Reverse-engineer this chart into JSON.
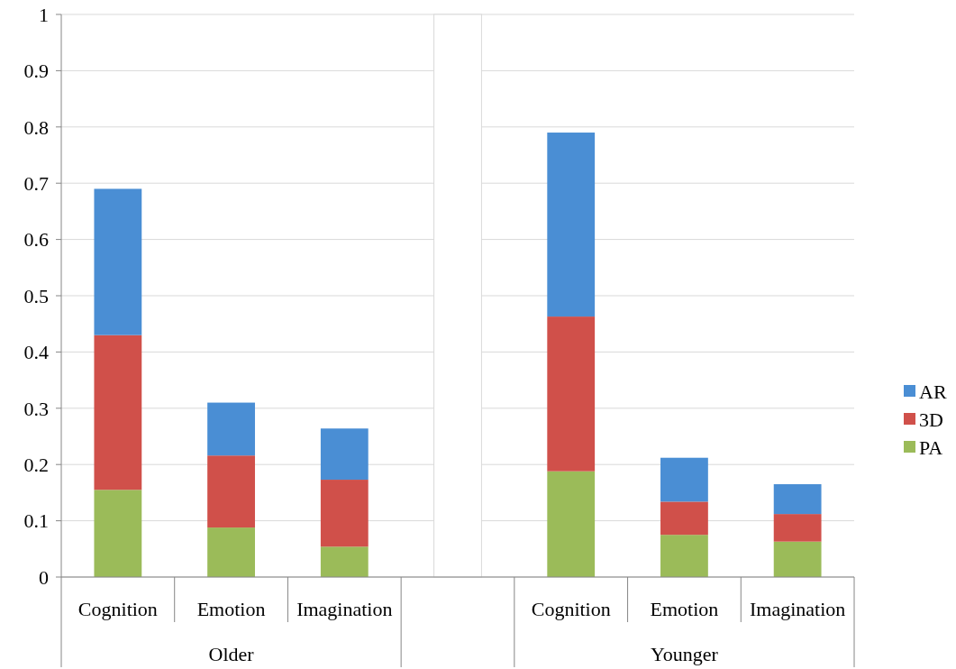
{
  "chart_data": {
    "type": "bar",
    "stacked": true,
    "categories": [
      "Cognition",
      "Emotion",
      "Imagination",
      null,
      "Cognition",
      "Emotion",
      "Imagination"
    ],
    "series": [
      {
        "name": "PA",
        "color": "#9bbb59",
        "values": [
          0.155,
          0.088,
          0.054,
          null,
          0.188,
          0.075,
          0.063
        ]
      },
      {
        "name": "3D",
        "color": "#d0504a",
        "values": [
          0.275,
          0.128,
          0.119,
          null,
          0.275,
          0.059,
          0.049
        ]
      },
      {
        "name": "AR",
        "color": "#4a8ed4",
        "values": [
          0.26,
          0.094,
          0.091,
          null,
          0.327,
          0.078,
          0.053
        ]
      },
      {
        "color": "#ffffff",
        "values": [
          null,
          null,
          null,
          1,
          null,
          null,
          null
        ]
      }
    ],
    "annotations": [
      "Older",
      "Younger"
    ],
    "ylim": [
      0,
      1
    ],
    "yticks": [
      0,
      0.1,
      0.2,
      0.3,
      0.4,
      0.5,
      0.6,
      0.7,
      0.8,
      0.9,
      1
    ],
    "grid": "y",
    "legend": "right"
  }
}
